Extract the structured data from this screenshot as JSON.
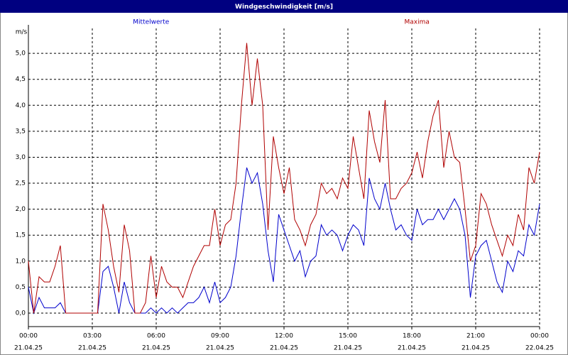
{
  "chart_data": {
    "type": "line",
    "title": "Windgeschwindigkeit [m/s]",
    "y_label": "m/s",
    "x": [
      0,
      0.25,
      0.5,
      0.75,
      1,
      1.25,
      1.5,
      1.75,
      2,
      2.25,
      2.5,
      2.75,
      3,
      3.25,
      3.5,
      3.75,
      4,
      4.25,
      4.5,
      4.75,
      5,
      5.25,
      5.5,
      5.75,
      6,
      6.25,
      6.5,
      6.75,
      7,
      7.25,
      7.5,
      7.75,
      8,
      8.25,
      8.5,
      8.75,
      9,
      9.25,
      9.5,
      9.75,
      10,
      10.25,
      10.5,
      10.75,
      11,
      11.25,
      11.5,
      11.75,
      12,
      12.25,
      12.5,
      12.75,
      13,
      13.25,
      13.5,
      13.75,
      14,
      14.25,
      14.5,
      14.75,
      15,
      15.25,
      15.5,
      15.75,
      16,
      16.25,
      16.5,
      16.75,
      17,
      17.25,
      17.5,
      17.75,
      18,
      18.25,
      18.5,
      18.75,
      19,
      19.25,
      19.5,
      19.75,
      20,
      20.25,
      20.5,
      20.75,
      21,
      21.25,
      21.5,
      21.75,
      22,
      22.25,
      22.5,
      22.75,
      23,
      23.25,
      23.5,
      23.75,
      24
    ],
    "series": [
      {
        "name": "Mittelwerte",
        "color": "#0000cc",
        "values": [
          0.5,
          0.0,
          0.3,
          0.1,
          0.1,
          0.1,
          0.2,
          0.0,
          0,
          0,
          0,
          0,
          0,
          0,
          0.8,
          0.9,
          0.5,
          0.0,
          0.6,
          0.2,
          0.0,
          0.0,
          0.0,
          0.1,
          0.0,
          0.1,
          0.0,
          0.1,
          0.0,
          0.1,
          0.2,
          0.2,
          0.3,
          0.5,
          0.2,
          0.6,
          0.2,
          0.3,
          0.5,
          1.1,
          2.0,
          2.8,
          2.5,
          2.7,
          2.1,
          1.2,
          0.6,
          1.9,
          1.6,
          1.3,
          1.0,
          1.2,
          0.7,
          1.0,
          1.1,
          1.7,
          1.5,
          1.6,
          1.5,
          1.2,
          1.5,
          1.7,
          1.6,
          1.3,
          2.6,
          2.2,
          2.0,
          2.5,
          2.0,
          1.6,
          1.7,
          1.5,
          1.4,
          2.0,
          1.7,
          1.8,
          1.8,
          2.0,
          1.8,
          2.0,
          2.2,
          2.0,
          1.5,
          0.3,
          1.1,
          1.3,
          1.4,
          1.0,
          0.6,
          0.4,
          1.0,
          0.8,
          1.2,
          1.1,
          1.7,
          1.5,
          2.1
        ]
      },
      {
        "name": "Maxima",
        "color": "#b00000",
        "values": [
          1.0,
          0.0,
          0.7,
          0.6,
          0.6,
          0.9,
          1.3,
          0.0,
          0,
          0,
          0,
          0,
          0,
          0,
          2.1,
          1.6,
          0.9,
          0.4,
          1.7,
          1.2,
          0.0,
          0.0,
          0.2,
          1.1,
          0.3,
          0.9,
          0.6,
          0.5,
          0.5,
          0.3,
          0.6,
          0.9,
          1.1,
          1.3,
          1.3,
          2.0,
          1.3,
          1.7,
          1.8,
          2.5,
          4.0,
          5.2,
          4.0,
          4.9,
          4.0,
          1.6,
          3.4,
          2.8,
          2.3,
          2.8,
          1.8,
          1.6,
          1.3,
          1.7,
          1.9,
          2.5,
          2.3,
          2.4,
          2.2,
          2.6,
          2.4,
          3.4,
          2.8,
          2.2,
          3.9,
          3.3,
          2.9,
          4.1,
          2.2,
          2.2,
          2.4,
          2.5,
          2.7,
          3.1,
          2.6,
          3.3,
          3.8,
          4.1,
          2.8,
          3.5,
          3.0,
          2.9,
          2.0,
          1.0,
          1.3,
          2.3,
          2.1,
          1.7,
          1.4,
          1.1,
          1.5,
          1.3,
          1.9,
          1.6,
          2.8,
          2.5,
          3.1
        ]
      }
    ],
    "xlim": [
      0,
      24
    ],
    "xticks": [
      {
        "value": 0,
        "label": "00:00"
      },
      {
        "value": 3,
        "label": "03:00"
      },
      {
        "value": 6,
        "label": "06:00"
      },
      {
        "value": 9,
        "label": "09:00"
      },
      {
        "value": 12,
        "label": "12:00"
      },
      {
        "value": 15,
        "label": "15:00"
      },
      {
        "value": 18,
        "label": "18:00"
      },
      {
        "value": 21,
        "label": "21:00"
      },
      {
        "value": 24,
        "label": "00:00"
      }
    ],
    "xtick_dates": [
      "21.04.25",
      "21.04.25",
      "21.04.25",
      "21.04.25",
      "21.04.25",
      "21.04.25",
      "21.04.25",
      "21.04.25",
      "22.04.25"
    ],
    "ylim": [
      -0.26,
      5.48
    ],
    "yticks": [
      {
        "value": 0,
        "label": "0,0"
      },
      {
        "value": 0.5,
        "label": "0,5"
      },
      {
        "value": 1,
        "label": "1,0"
      },
      {
        "value": 1.5,
        "label": "1,5"
      },
      {
        "value": 2,
        "label": "2,0"
      },
      {
        "value": 2.5,
        "label": "2,5"
      },
      {
        "value": 3,
        "label": "3,0"
      },
      {
        "value": 3.5,
        "label": "3,5"
      },
      {
        "value": 4,
        "label": "4,0"
      },
      {
        "value": 4.5,
        "label": "4,5"
      },
      {
        "value": 5,
        "label": "5,0"
      }
    ],
    "grid": true
  }
}
